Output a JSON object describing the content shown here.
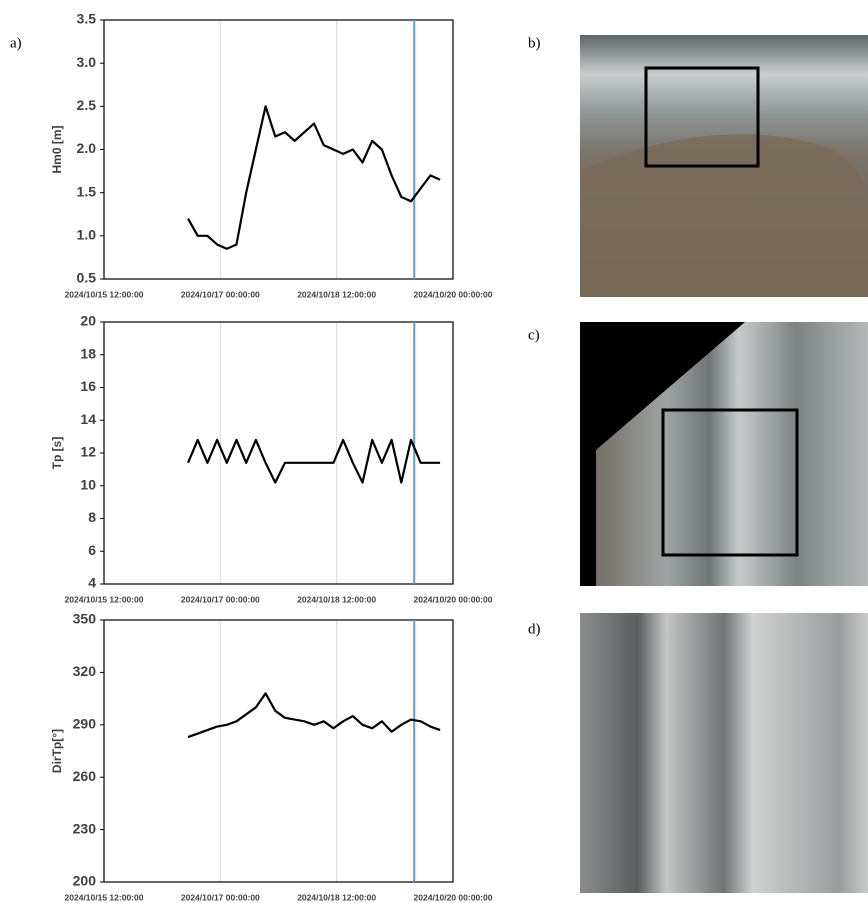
{
  "panel_labels": [
    "a)",
    "b)",
    "c)",
    "d)"
  ],
  "chart_data": [
    {
      "type": "line",
      "ylabel": "Hm0 [m]",
      "color": "#000000",
      "grid": true,
      "marker_x": "2024/10/19 12:00:00",
      "marker_color": "#5b9bd5",
      "xlim": [
        "2024/10/15 12:00:00",
        "2024/10/20 00:00:00"
      ],
      "xticks": [
        "2024/10/15 12:00:00",
        "2024/10/17 00:00:00",
        "2024/10/18 12:00:00",
        "2024/10/20 00:00:00"
      ],
      "ylim": [
        0.5,
        3.5
      ],
      "yticks": [
        0.5,
        {
          "value": 1,
          "label": "1.0"
        },
        1.5,
        {
          "value": 2,
          "label": "2.0"
        },
        2.5,
        {
          "value": 3,
          "label": "3.0"
        },
        3.5
      ],
      "x": [
        "2024/10/16 14:00:00",
        "2024/10/16 17:00:00",
        "2024/10/16 20:00:00",
        "2024/10/16 23:00:00",
        "2024/10/17 02:00:00",
        "2024/10/17 05:00:00",
        "2024/10/17 08:00:00",
        "2024/10/17 11:00:00",
        "2024/10/17 14:00:00",
        "2024/10/17 17:00:00",
        "2024/10/17 20:00:00",
        "2024/10/17 23:00:00",
        "2024/10/18 02:00:00",
        "2024/10/18 05:00:00",
        "2024/10/18 08:00:00",
        "2024/10/18 11:00:00",
        "2024/10/18 14:00:00",
        "2024/10/18 17:00:00",
        "2024/10/18 20:00:00",
        "2024/10/18 23:00:00",
        "2024/10/19 02:00:00",
        "2024/10/19 05:00:00",
        "2024/10/19 08:00:00",
        "2024/10/19 11:00:00",
        "2024/10/19 14:00:00",
        "2024/10/19 17:00:00",
        "2024/10/19 20:00:00"
      ],
      "values": [
        1.2,
        1.0,
        1.0,
        0.9,
        0.85,
        0.9,
        1.5,
        2.0,
        2.5,
        2.15,
        2.2,
        2.1,
        2.2,
        2.3,
        2.05,
        2.0,
        1.95,
        2.0,
        1.85,
        2.1,
        2.0,
        1.7,
        1.45,
        1.4,
        1.55,
        1.7,
        1.65
      ]
    },
    {
      "type": "line",
      "ylabel": "Tp [s]",
      "color": "#000000",
      "grid": true,
      "marker_x": "2024/10/19 12:00:00",
      "marker_color": "#5b9bd5",
      "xlim": [
        "2024/10/15 12:00:00",
        "2024/10/20 00:00:00"
      ],
      "xticks": [
        "2024/10/15 12:00:00",
        "2024/10/17 00:00:00",
        "2024/10/18 12:00:00",
        "2024/10/20 00:00:00"
      ],
      "ylim": [
        4,
        20
      ],
      "yticks": [
        4,
        6,
        8,
        10,
        12,
        14,
        16,
        18,
        20
      ],
      "x": [
        "2024/10/16 14:00:00",
        "2024/10/16 17:00:00",
        "2024/10/16 20:00:00",
        "2024/10/16 23:00:00",
        "2024/10/17 02:00:00",
        "2024/10/17 05:00:00",
        "2024/10/17 08:00:00",
        "2024/10/17 11:00:00",
        "2024/10/17 14:00:00",
        "2024/10/17 17:00:00",
        "2024/10/17 20:00:00",
        "2024/10/17 23:00:00",
        "2024/10/18 02:00:00",
        "2024/10/18 05:00:00",
        "2024/10/18 08:00:00",
        "2024/10/18 11:00:00",
        "2024/10/18 14:00:00",
        "2024/10/18 17:00:00",
        "2024/10/18 20:00:00",
        "2024/10/18 23:00:00",
        "2024/10/19 02:00:00",
        "2024/10/19 05:00:00",
        "2024/10/19 08:00:00",
        "2024/10/19 11:00:00",
        "2024/10/19 14:00:00",
        "2024/10/19 17:00:00",
        "2024/10/19 20:00:00"
      ],
      "values": [
        11.4,
        12.8,
        11.4,
        12.8,
        11.4,
        12.8,
        11.4,
        12.8,
        11.4,
        10.2,
        11.4,
        11.4,
        11.4,
        11.4,
        11.4,
        11.4,
        12.8,
        11.4,
        10.2,
        12.8,
        11.4,
        12.8,
        10.2,
        12.8,
        11.4,
        11.4,
        11.4
      ]
    },
    {
      "type": "line",
      "ylabel": "DirTp[°]",
      "color": "#000000",
      "grid": true,
      "marker_x": "2024/10/19 12:00:00",
      "marker_color": "#5b9bd5",
      "xlim": [
        "2024/10/15 12:00:00",
        "2024/10/20 00:00:00"
      ],
      "xticks": [
        "2024/10/15 12:00:00",
        "2024/10/17 00:00:00",
        "2024/10/18 12:00:00",
        "2024/10/20 00:00:00"
      ],
      "ylim": [
        200,
        350
      ],
      "yticks": [
        200,
        230,
        260,
        290,
        320,
        350
      ],
      "x": [
        "2024/10/16 14:00:00",
        "2024/10/16 17:00:00",
        "2024/10/16 20:00:00",
        "2024/10/16 23:00:00",
        "2024/10/17 02:00:00",
        "2024/10/17 05:00:00",
        "2024/10/17 08:00:00",
        "2024/10/17 11:00:00",
        "2024/10/17 14:00:00",
        "2024/10/17 17:00:00",
        "2024/10/17 20:00:00",
        "2024/10/17 23:00:00",
        "2024/10/18 02:00:00",
        "2024/10/18 05:00:00",
        "2024/10/18 08:00:00",
        "2024/10/18 11:00:00",
        "2024/10/18 14:00:00",
        "2024/10/18 17:00:00",
        "2024/10/18 20:00:00",
        "2024/10/18 23:00:00",
        "2024/10/19 02:00:00",
        "2024/10/19 05:00:00",
        "2024/10/19 08:00:00",
        "2024/10/19 11:00:00",
        "2024/10/19 14:00:00",
        "2024/10/19 17:00:00",
        "2024/10/19 20:00:00"
      ],
      "values": [
        283,
        285,
        287,
        289,
        290,
        292,
        296,
        300,
        308,
        298,
        294,
        293,
        292,
        290,
        292,
        288,
        292,
        295,
        290,
        288,
        292,
        286,
        290,
        293,
        292,
        289,
        287
      ]
    }
  ]
}
